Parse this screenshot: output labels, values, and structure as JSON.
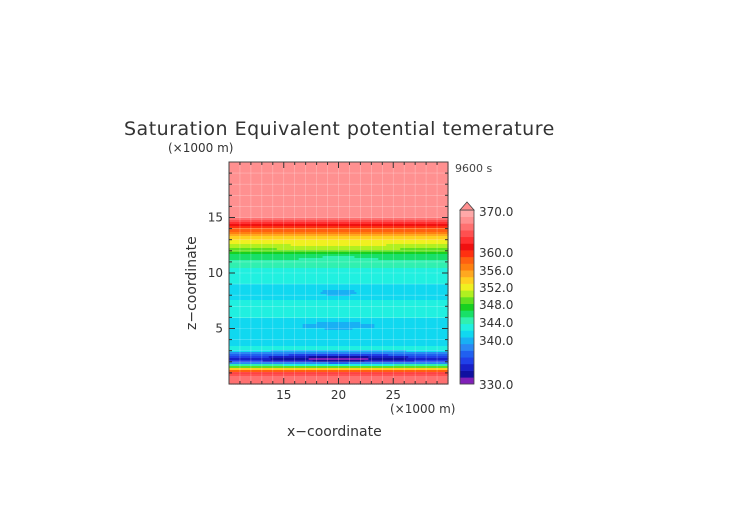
{
  "chart_data": {
    "type": "heatmap",
    "title": "Saturation Equivalent potential temerature",
    "xlabel": "x−coordinate",
    "ylabel": "z−coordinate",
    "x_unit": "(×1000 m)",
    "y_unit": "(×1000 m)",
    "time_label": "9600 s",
    "xlim": [
      10,
      30
    ],
    "ylim": [
      0,
      20
    ],
    "x_ticks": [
      15,
      20,
      25
    ],
    "y_ticks": [
      5,
      10,
      15
    ],
    "grid": true,
    "colorbar": {
      "labels": [
        "370.0",
        "360.0",
        "356.0",
        "352.0",
        "348.0",
        "344.0",
        "340.0",
        "330.0"
      ],
      "levels": [
        330,
        338,
        339,
        340,
        341,
        342,
        343,
        344,
        345,
        346,
        347,
        348,
        349,
        350,
        351,
        352,
        353,
        354,
        355,
        356,
        357,
        358,
        359,
        360,
        362,
        370
      ],
      "colors": [
        "#8020b8",
        "#1010a0",
        "#1820c8",
        "#2040e8",
        "#2060f0",
        "#2a88f4",
        "#18b0f4",
        "#10d8f0",
        "#20f0e0",
        "#30f0b0",
        "#18e068",
        "#18d020",
        "#60e020",
        "#b0f020",
        "#f0f020",
        "#ffd020",
        "#ffa820",
        "#ff8010",
        "#ff6010",
        "#ff3010",
        "#f01010",
        "#ff3030",
        "#ff5050",
        "#ff7070",
        "#ff9090",
        "#ffa8a8"
      ],
      "extend_top": true
    },
    "fields": [
      {
        "name": "base_profile",
        "z": [
          0,
          0.5,
          1.0,
          1.5,
          2.0,
          2.2,
          2.5,
          2.8,
          3.2,
          3.5,
          3.8,
          4.5,
          5.5,
          7.0,
          8.0,
          9.0,
          10.0,
          11.0,
          11.7,
          12.3,
          13.0,
          13.5,
          14.0,
          14.5,
          14.8,
          15.2,
          15.5,
          20.0
        ],
        "theta": [
          362,
          361.5,
          358,
          350,
          341,
          339.5,
          341,
          343,
          345.5,
          344.5,
          345,
          344.2,
          344.8,
          345.5,
          344.5,
          345,
          345.5,
          346.5,
          348,
          350,
          352,
          354,
          356,
          358,
          360.5,
          363,
          366,
          368
        ]
      },
      {
        "name": "dip_low",
        "x_center": 20,
        "x_halfwidth": 6,
        "z_center": 2.3,
        "z_halfwidth": 0.45,
        "amplitude": -2.2
      },
      {
        "name": "dip_mid",
        "x_center": 20,
        "x_halfwidth": 4,
        "z_center": 5.3,
        "z_halfwidth": 0.35,
        "amplitude": -1.4
      },
      {
        "name": "dip_upper",
        "x_center": 20,
        "x_halfwidth": 2,
        "z_center": 8.3,
        "z_halfwidth": 0.35,
        "amplitude": -1.3
      },
      {
        "name": "bump_green",
        "x_center": 20,
        "x_halfwidth": 7,
        "z_center": 12.2,
        "z_halfwidth": 0.45,
        "amplitude": 0.9
      },
      {
        "name": "dip_green_center",
        "x_center": 20,
        "x_halfwidth": 2.5,
        "z_center": 11.4,
        "z_halfwidth": 0.4,
        "amplitude": -0.7
      }
    ]
  }
}
